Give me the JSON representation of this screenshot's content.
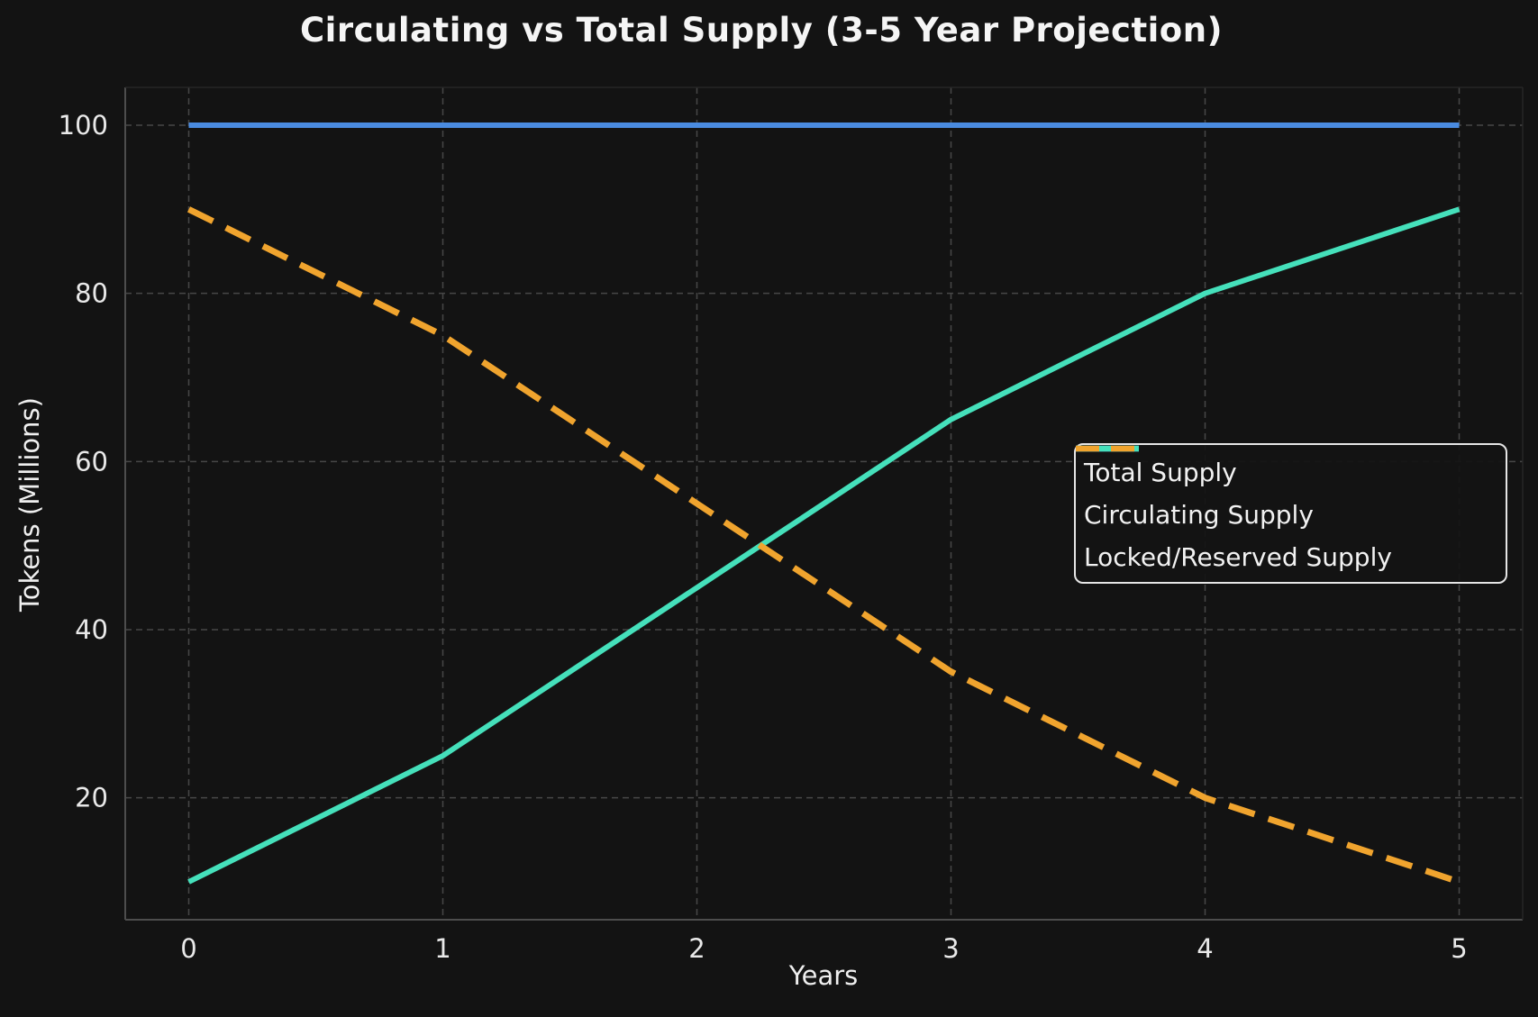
{
  "chart_data": {
    "type": "line",
    "title": "Circulating vs Total Supply (3-5 Year Projection)",
    "xlabel": "Years",
    "ylabel": "Tokens (Millions)",
    "x": [
      0,
      1,
      2,
      3,
      4,
      5
    ],
    "series": [
      {
        "name": "Total Supply",
        "values": [
          100,
          100,
          100,
          100,
          100,
          100
        ],
        "color": "#4a8be0",
        "style": "solid"
      },
      {
        "name": "Circulating Supply",
        "values": [
          10,
          25,
          45,
          65,
          80,
          90
        ],
        "color": "#45e0bb",
        "style": "solid"
      },
      {
        "name": "Locked/Reserved Supply",
        "values": [
          90,
          75,
          55,
          35,
          20,
          10
        ],
        "color": "#f0a42e",
        "style": "dashed"
      }
    ],
    "xticks": [
      0,
      1,
      2,
      3,
      4,
      5
    ],
    "yticks": [
      20,
      40,
      60,
      80,
      100
    ],
    "xlim": [
      -0.25,
      5.25
    ],
    "ylim": [
      5.5,
      104.5
    ],
    "grid": true,
    "legend_position": "center right",
    "colors": {
      "background": "#131313",
      "text": "#efefef",
      "grid": "#474747",
      "spine": "#4d4d4d",
      "legend_border": "#e6e6e6"
    }
  }
}
